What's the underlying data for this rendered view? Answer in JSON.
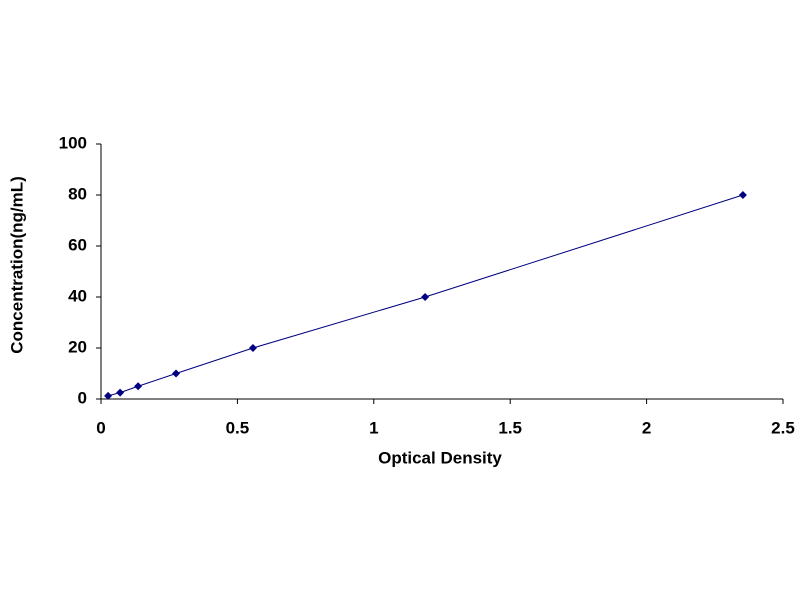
{
  "chart_data": {
    "type": "scatter",
    "x_label": "Optical Density",
    "y_label": "Concentration(ng/mL)",
    "x": [
      0.026,
      0.07,
      0.136,
      0.275,
      0.557,
      1.188,
      2.353
    ],
    "series": [
      {
        "color": "#000080",
        "values": [
          1.25,
          2.5,
          5,
          10,
          20,
          40,
          80
        ]
      }
    ],
    "line": true,
    "marker": "diamond",
    "xlim": [
      0,
      2.5
    ],
    "xticks": [
      0,
      0.5,
      1,
      1.5,
      2,
      2.5
    ],
    "ylim": [
      0,
      100
    ],
    "yticks": [
      0,
      20,
      40,
      60,
      80,
      100
    ],
    "grid": false
  }
}
